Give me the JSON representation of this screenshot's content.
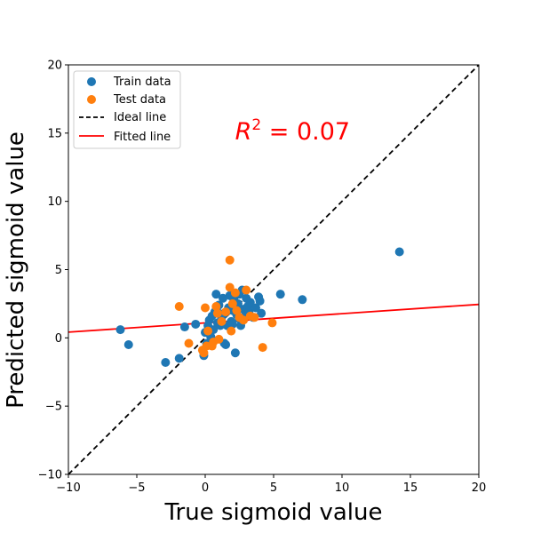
{
  "chart_data": {
    "type": "scatter",
    "title": "",
    "xlabel": "True sigmoid value",
    "ylabel": "Predicted sigmoid value",
    "xlim": [
      -10,
      20
    ],
    "ylim": [
      -10,
      20
    ],
    "xticks": [
      -10,
      -5,
      0,
      5,
      10,
      15,
      20
    ],
    "yticks": [
      -10,
      -5,
      0,
      5,
      10,
      15,
      20
    ],
    "xtick_labels": [
      "−10",
      "−5",
      "0",
      "5",
      "10",
      "15",
      "20"
    ],
    "ytick_labels": [
      "−10",
      "−5",
      "0",
      "5",
      "10",
      "15",
      "20"
    ],
    "grid": false,
    "legend_position": "top-left",
    "annotation": {
      "label": "R",
      "superscript": "2",
      "value": " = 0.07",
      "x": 5.3,
      "y": 15.2,
      "color": "#ff0000"
    },
    "series": [
      {
        "name": "Train data",
        "kind": "scatter",
        "color": "#1f77b4",
        "points": [
          [
            -6.2,
            0.6
          ],
          [
            -5.6,
            -0.5
          ],
          [
            -2.9,
            -1.8
          ],
          [
            -1.9,
            -1.5
          ],
          [
            -1.5,
            0.8
          ],
          [
            -0.7,
            1.0
          ],
          [
            -0.1,
            -1.3
          ],
          [
            0.0,
            0.4
          ],
          [
            0.1,
            -0.4
          ],
          [
            0.2,
            0.9
          ],
          [
            0.3,
            1.3
          ],
          [
            0.4,
            0.1
          ],
          [
            0.5,
            1.6
          ],
          [
            0.6,
            0.6
          ],
          [
            0.7,
            1.9
          ],
          [
            0.8,
            3.2
          ],
          [
            0.9,
            1.1
          ],
          [
            1.0,
            2.4
          ],
          [
            1.1,
            0.9
          ],
          [
            1.2,
            1.5
          ],
          [
            1.3,
            2.9
          ],
          [
            1.4,
            1.8
          ],
          [
            1.5,
            -0.5
          ],
          [
            1.6,
            0.9
          ],
          [
            1.7,
            2.2
          ],
          [
            1.8,
            3.1
          ],
          [
            1.9,
            1.2
          ],
          [
            2.0,
            2.0
          ],
          [
            2.1,
            2.8
          ],
          [
            2.2,
            -1.1
          ],
          [
            2.3,
            1.7
          ],
          [
            2.4,
            2.5
          ],
          [
            2.5,
            1.4
          ],
          [
            2.6,
            0.9
          ],
          [
            2.7,
            3.5
          ],
          [
            2.8,
            2.1
          ],
          [
            2.9,
            1.6
          ],
          [
            3.0,
            2.9
          ],
          [
            3.1,
            2.3
          ],
          [
            3.2,
            1.9
          ],
          [
            3.3,
            2.6
          ],
          [
            3.5,
            1.5
          ],
          [
            3.7,
            2.2
          ],
          [
            3.9,
            3.0
          ],
          [
            4.0,
            2.7
          ],
          [
            4.1,
            1.8
          ],
          [
            5.5,
            3.2
          ],
          [
            7.1,
            2.8
          ],
          [
            14.2,
            6.3
          ],
          [
            1.4,
            -0.4
          ],
          [
            0.6,
            -0.2
          ],
          [
            2.0,
            1.0
          ],
          [
            1.0,
            1.8
          ],
          [
            2.5,
            3.2
          ]
        ]
      },
      {
        "name": "Test data",
        "kind": "scatter",
        "color": "#ff7f0e",
        "points": [
          [
            -1.9,
            2.3
          ],
          [
            -1.2,
            -0.4
          ],
          [
            -0.2,
            -0.9
          ],
          [
            0.0,
            2.2
          ],
          [
            0.1,
            -0.6
          ],
          [
            0.2,
            0.5
          ],
          [
            0.5,
            -0.6
          ],
          [
            0.6,
            -0.3
          ],
          [
            0.8,
            2.3
          ],
          [
            0.9,
            1.8
          ],
          [
            1.0,
            -0.1
          ],
          [
            1.2,
            1.2
          ],
          [
            1.5,
            1.9
          ],
          [
            1.8,
            3.7
          ],
          [
            1.9,
            0.5
          ],
          [
            2.0,
            2.5
          ],
          [
            2.2,
            3.3
          ],
          [
            2.5,
            1.5
          ],
          [
            2.8,
            1.3
          ],
          [
            3.0,
            3.5
          ],
          [
            3.3,
            1.6
          ],
          [
            3.6,
            1.5
          ],
          [
            4.2,
            -0.7
          ],
          [
            4.9,
            1.1
          ],
          [
            1.8,
            5.7
          ],
          [
            -0.1,
            -1.1
          ],
          [
            2.3,
            2.0
          ]
        ]
      },
      {
        "name": "Ideal line",
        "kind": "line",
        "dash": true,
        "color": "#000000",
        "points": [
          [
            -10,
            -10
          ],
          [
            20,
            20
          ]
        ]
      },
      {
        "name": "Fitted line",
        "kind": "line",
        "dash": false,
        "color": "#ff0000",
        "points": [
          [
            -10,
            0.42
          ],
          [
            20,
            2.45
          ]
        ]
      }
    ]
  }
}
